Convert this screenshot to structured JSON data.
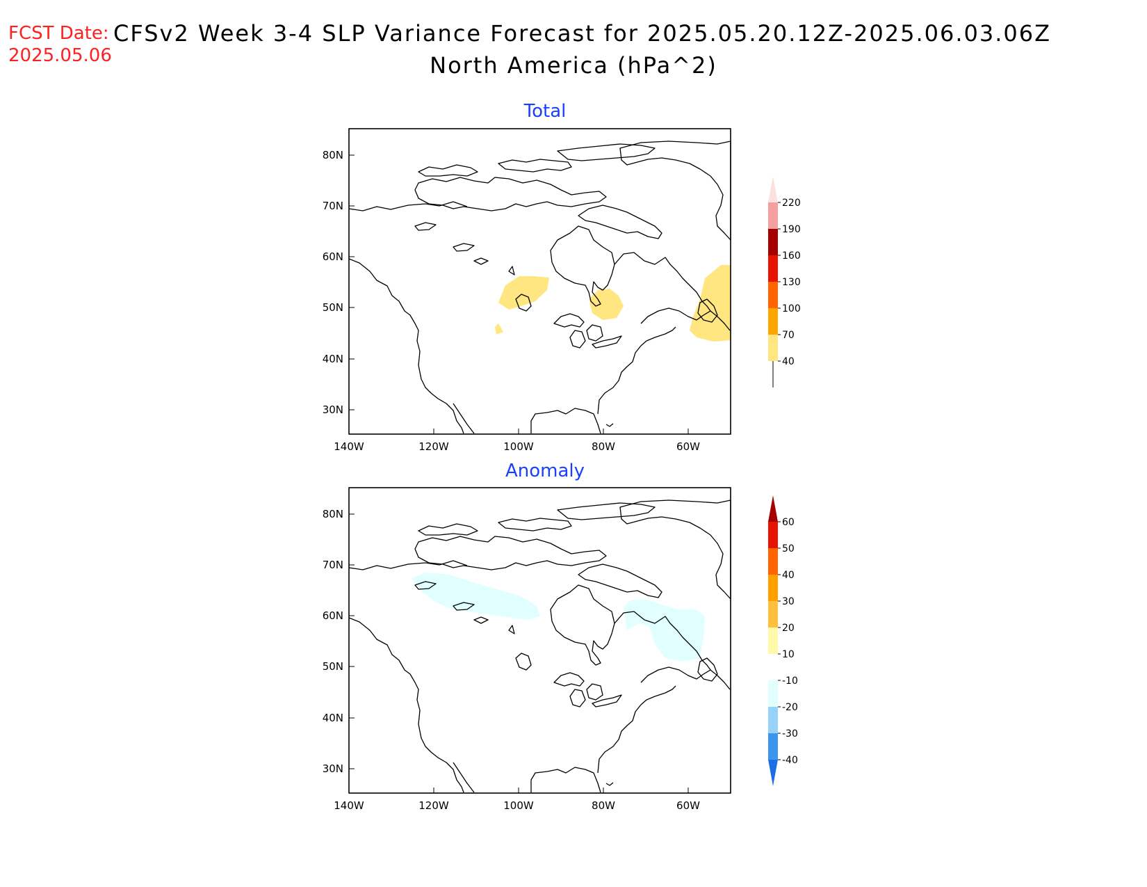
{
  "header": {
    "fcst_label": "FCST Date:",
    "fcst_date": "2025.05.06",
    "title": "CFSv2 Week 3-4 SLP Variance Forecast for 2025.05.20.12Z-2025.06.03.06Z",
    "subtitle": "North America (hPa^2)"
  },
  "axes": {
    "lon_ticks": [
      "140W",
      "120W",
      "100W",
      "80W",
      "60W"
    ],
    "lat_ticks": [
      "80N",
      "70N",
      "60N",
      "50N",
      "40N",
      "30N"
    ]
  },
  "panels": [
    {
      "title": "Total",
      "colorbar": {
        "levels": [
          "40",
          "70",
          "100",
          "130",
          "160",
          "190",
          "220"
        ],
        "colors": [
          "#ffe680",
          "#ffa500",
          "#ff6400",
          "#e61400",
          "#a50000",
          "#f5a0a0",
          "#fde0e0"
        ]
      },
      "shaded_regions": [
        "Saskatchewan/Manitoba (~40-70)",
        "Western Ontario near Hudson Bay (~40-70)",
        "Newfoundland/Labrador (~40-70)"
      ]
    },
    {
      "title": "Anomaly",
      "colorbar": {
        "levels": [
          "-40",
          "-30",
          "-20",
          "-10",
          "10",
          "20",
          "30",
          "40",
          "50",
          "60"
        ],
        "colors": [
          "#1e6ee6",
          "#3c96f0",
          "#96d2fa",
          "#e1ffff",
          "#ffffff",
          "#fffaaa",
          "#ffc03c",
          "#ffa000",
          "#ff6400",
          "#e61400",
          "#a50000"
        ]
      },
      "shaded_regions": [
        "Northern Canada (NWT to Hudson Bay) (~-20 to -10)",
        "Northern Quebec / Labrador (~-20 to -10)"
      ]
    }
  ]
}
